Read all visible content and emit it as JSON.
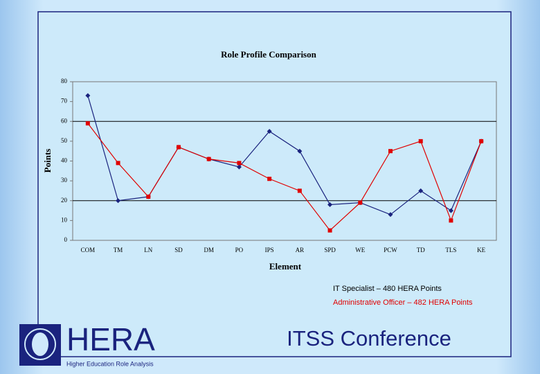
{
  "chart_data": {
    "type": "line",
    "title": "Role Profile Comparison",
    "x_label": "Element",
    "y_label": "Points",
    "categories": [
      "COM",
      "TM",
      "LN",
      "SD",
      "DM",
      "PO",
      "IPS",
      "AR",
      "SPD",
      "WE",
      "PCW",
      "TD",
      "TLS",
      "KE"
    ],
    "series": [
      {
        "name": "IT Specialist – 480 HERA Points",
        "color": "#1a237e",
        "marker": "diamond",
        "values": [
          73,
          20,
          22,
          47,
          41,
          37,
          55,
          45,
          18,
          19,
          13,
          25,
          15,
          50
        ]
      },
      {
        "name": "Administrative Officer – 482 HERA Points",
        "color": "#e00000",
        "marker": "square",
        "values": [
          59,
          39,
          22,
          47,
          41,
          39,
          31,
          25,
          5,
          19,
          45,
          50,
          10,
          50
        ]
      }
    ],
    "ylim": [
      0,
      80
    ],
    "yticks": [
      0,
      10,
      20,
      30,
      40,
      50,
      60,
      70,
      80
    ],
    "grid_lines": [
      20,
      60
    ]
  },
  "footer": {
    "logo_text": "HERA",
    "logo_caption": "Higher Education Role Analysis",
    "event": "ITSS Conference"
  }
}
